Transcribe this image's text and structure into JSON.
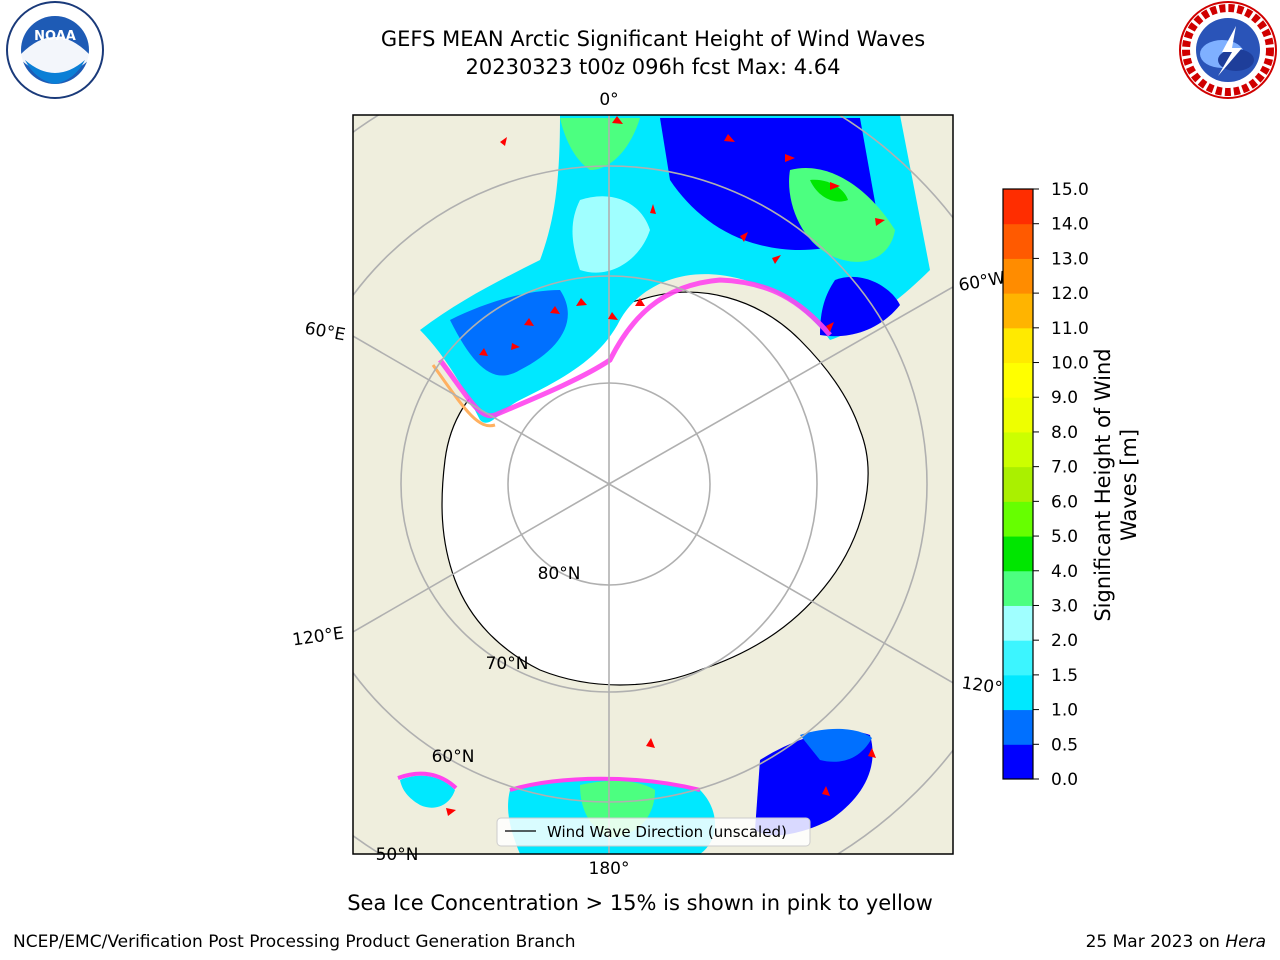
{
  "title": {
    "line1": "GEFS MEAN Arctic Significant Height of Wind Waves",
    "line2": "20230323 t00z 096h fcst   Max: 4.64"
  },
  "map": {
    "projection": "north polar stereographic",
    "meridian_labels": {
      "lon_0": "0°",
      "lon_60e": "60°E",
      "lon_120e": "120°E",
      "lon_180": "180°",
      "lon_120w": "120°",
      "lon_60w": "60°W"
    },
    "parallel_labels": {
      "lat_80": "80°N",
      "lat_70": "70°N",
      "lat_60": "60°N",
      "lat_50": "50°N"
    },
    "legend": {
      "label": "Wind Wave Direction (unscaled)"
    },
    "colors": {
      "land": "#efeedd",
      "ocean_ice_free": "#ffffff",
      "graticule": "#b0b0b0",
      "arrows": "#ff0000"
    }
  },
  "colorbar": {
    "label_line1": "Significant Height of Wind",
    "label_line2": "Waves [m]",
    "ticks": [
      "15.0",
      "14.0",
      "13.0",
      "12.0",
      "11.0",
      "10.0",
      "9.0",
      "8.0",
      "7.0",
      "6.0",
      "5.0",
      "4.0",
      "3.0",
      "2.0",
      "1.5",
      "1.0",
      "0.5",
      "0.0"
    ],
    "colors_low_to_high": [
      "#0000ff",
      "#0070ff",
      "#00e8ff",
      "#3cf5ff",
      "#a0ffff",
      "#4cff80",
      "#00e600",
      "#66ff00",
      "#aaf000",
      "#ccff00",
      "#eeff00",
      "#ffff00",
      "#ffea00",
      "#ffb400",
      "#ff8c00",
      "#ff5a00",
      "#ff2d00"
    ]
  },
  "note": "Sea Ice Concentration > 15% is shown in pink to yellow",
  "footer": {
    "left": "NCEP/EMC/Verification Post Processing Product Generation Branch",
    "right_date": "25 Mar 2023 on ",
    "right_machine": "Hera"
  },
  "logos": {
    "noaa": "NOAA",
    "nws": "NATIONAL WEATHER SERVICE"
  }
}
